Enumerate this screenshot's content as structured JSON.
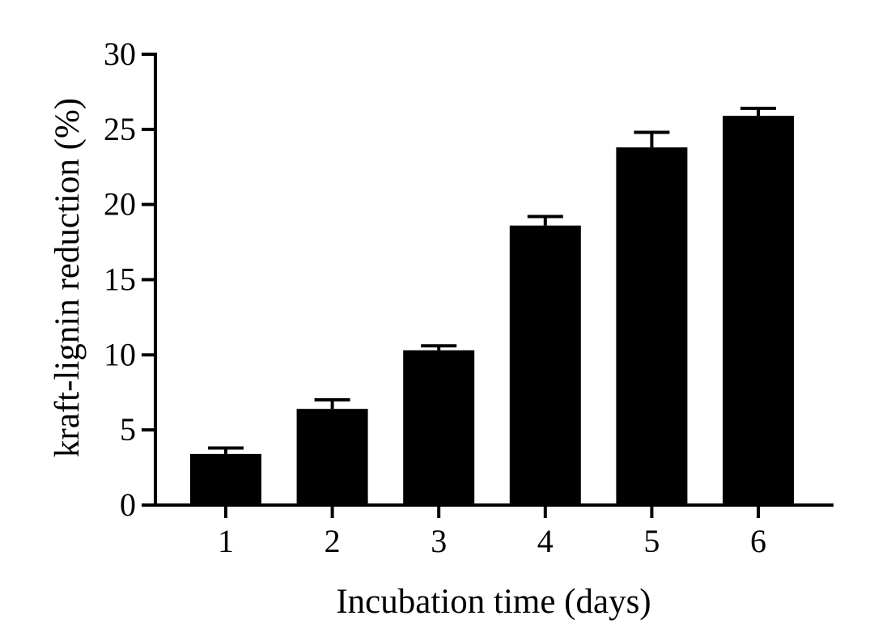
{
  "chart_data": {
    "type": "bar",
    "title": "",
    "xlabel": "Incubation time (days)",
    "ylabel": "kraft-lignin reduction (%)",
    "categories": [
      "1",
      "2",
      "3",
      "4",
      "5",
      "6"
    ],
    "values": [
      3.4,
      6.4,
      10.3,
      18.6,
      23.8,
      25.9
    ],
    "errors": [
      0.4,
      0.6,
      0.3,
      0.6,
      1.0,
      0.5
    ],
    "ylim": [
      0,
      30
    ],
    "yticks": [
      0,
      5,
      10,
      15,
      20,
      25,
      30
    ],
    "ytick_labels": [
      "0",
      "5",
      "10",
      "15",
      "20",
      "25",
      "30"
    ],
    "grid": false,
    "legend": "none",
    "bar_color": "#000000"
  }
}
